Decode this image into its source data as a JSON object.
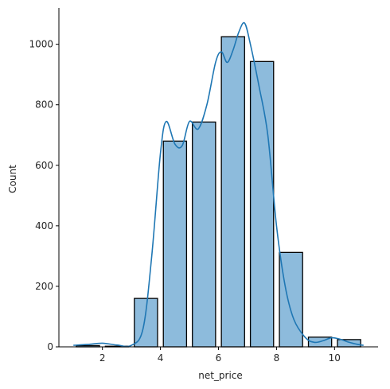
{
  "chart_data": {
    "type": "bar",
    "variant": "histogram with KDE line",
    "xlabel": "net_price",
    "ylabel": "Count",
    "xlim": [
      0.5,
      11.5
    ],
    "ylim": [
      0,
      1120
    ],
    "x_ticks": [
      2,
      4,
      6,
      8,
      10
    ],
    "y_ticks": [
      0,
      200,
      400,
      600,
      800,
      1000
    ],
    "bins": [
      {
        "x0": 1.0,
        "x1": 2.0,
        "count": 4
      },
      {
        "x0": 2.0,
        "x1": 3.0,
        "count": 2
      },
      {
        "x0": 3.0,
        "x1": 4.0,
        "count": 160
      },
      {
        "x0": 4.0,
        "x1": 5.0,
        "count": 680
      },
      {
        "x0": 5.0,
        "x1": 6.0,
        "count": 743
      },
      {
        "x0": 6.0,
        "x1": 7.0,
        "count": 1025
      },
      {
        "x0": 7.0,
        "x1": 8.0,
        "count": 943
      },
      {
        "x0": 8.0,
        "x1": 9.0,
        "count": 312
      },
      {
        "x0": 9.0,
        "x1": 10.0,
        "count": 32
      },
      {
        "x0": 10.0,
        "x1": 11.0,
        "count": 24
      }
    ],
    "kde": {
      "x": [
        1.0,
        1.5,
        2.0,
        2.5,
        3.0,
        3.4,
        3.7,
        4.0,
        4.2,
        4.5,
        4.75,
        5.0,
        5.3,
        5.6,
        5.9,
        6.1,
        6.3,
        6.5,
        6.7,
        6.9,
        7.1,
        7.4,
        7.7,
        8.0,
        8.3,
        8.6,
        9.0,
        9.3,
        9.6,
        9.9,
        10.2,
        10.5,
        10.8,
        11.0
      ],
      "y": [
        5,
        8,
        12,
        6,
        5,
        60,
        300,
        640,
        745,
        670,
        665,
        745,
        720,
        800,
        940,
        975,
        940,
        980,
        1040,
        1070,
        1000,
        860,
        700,
        400,
        200,
        90,
        30,
        15,
        20,
        30,
        25,
        15,
        8,
        5
      ]
    },
    "colors": {
      "bar_fill": "#8dbbdc",
      "bar_edge": "#000000",
      "kde_line": "#1f77b4",
      "axis": "#000000",
      "text": "#262626"
    },
    "grid": false,
    "legend": "none"
  }
}
